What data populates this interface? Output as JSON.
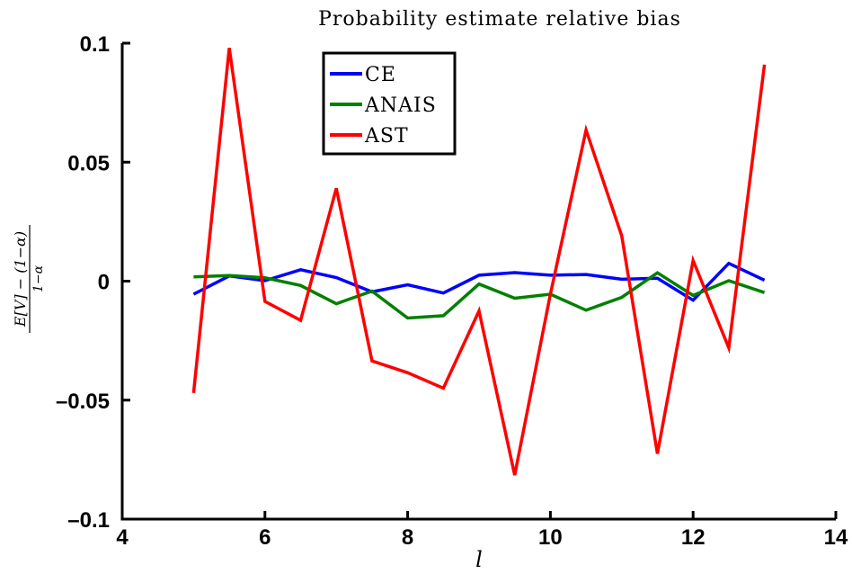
{
  "chart_data": {
    "type": "line",
    "title": "Probability estimate relative bias",
    "xlabel": "l",
    "ylabel": {
      "numerator": "E[V] − (1−α)",
      "denominator": "1−α"
    },
    "xlim": [
      4,
      14
    ],
    "ylim": [
      -0.1,
      0.1
    ],
    "xticks": [
      4,
      6,
      8,
      10,
      12,
      14
    ],
    "xtick_labels": [
      "4",
      "6",
      "8",
      "10",
      "12",
      "14"
    ],
    "yticks": [
      -0.1,
      -0.05,
      0,
      0.05,
      0.1
    ],
    "ytick_labels": [
      "–0.1",
      "–0.05",
      "0",
      "0.05",
      "0.1"
    ],
    "grid": false,
    "legend_position": "top-center",
    "x": [
      5,
      5.5,
      6,
      6.5,
      7,
      7.5,
      8,
      8.5,
      9,
      9.5,
      10,
      10.5,
      11,
      11.5,
      12,
      12.5,
      13
    ],
    "series": [
      {
        "name": "CE",
        "color": "#0000ff",
        "values": [
          -0.0055,
          0.0022,
          0.0002,
          0.0048,
          0.0015,
          -0.0045,
          -0.0015,
          -0.005,
          0.0025,
          0.0036,
          0.0025,
          0.0028,
          0.0008,
          0.0012,
          -0.008,
          0.0075,
          0.0004
        ]
      },
      {
        "name": "ANAIS",
        "color": "#008000",
        "values": [
          0.0018,
          0.0024,
          0.0014,
          -0.0018,
          -0.0095,
          -0.0042,
          -0.0155,
          -0.0145,
          -0.0012,
          -0.0072,
          -0.0055,
          -0.0122,
          -0.0068,
          0.0035,
          -0.006,
          0.0002,
          -0.0048
        ]
      },
      {
        "name": "AST",
        "color": "#ff0000",
        "values": [
          -0.047,
          0.098,
          -0.0085,
          -0.0165,
          0.039,
          -0.0335,
          -0.0385,
          -0.045,
          -0.0125,
          -0.0815,
          -0.0055,
          0.0635,
          0.019,
          -0.0725,
          0.0087,
          -0.028,
          0.091
        ]
      }
    ]
  }
}
